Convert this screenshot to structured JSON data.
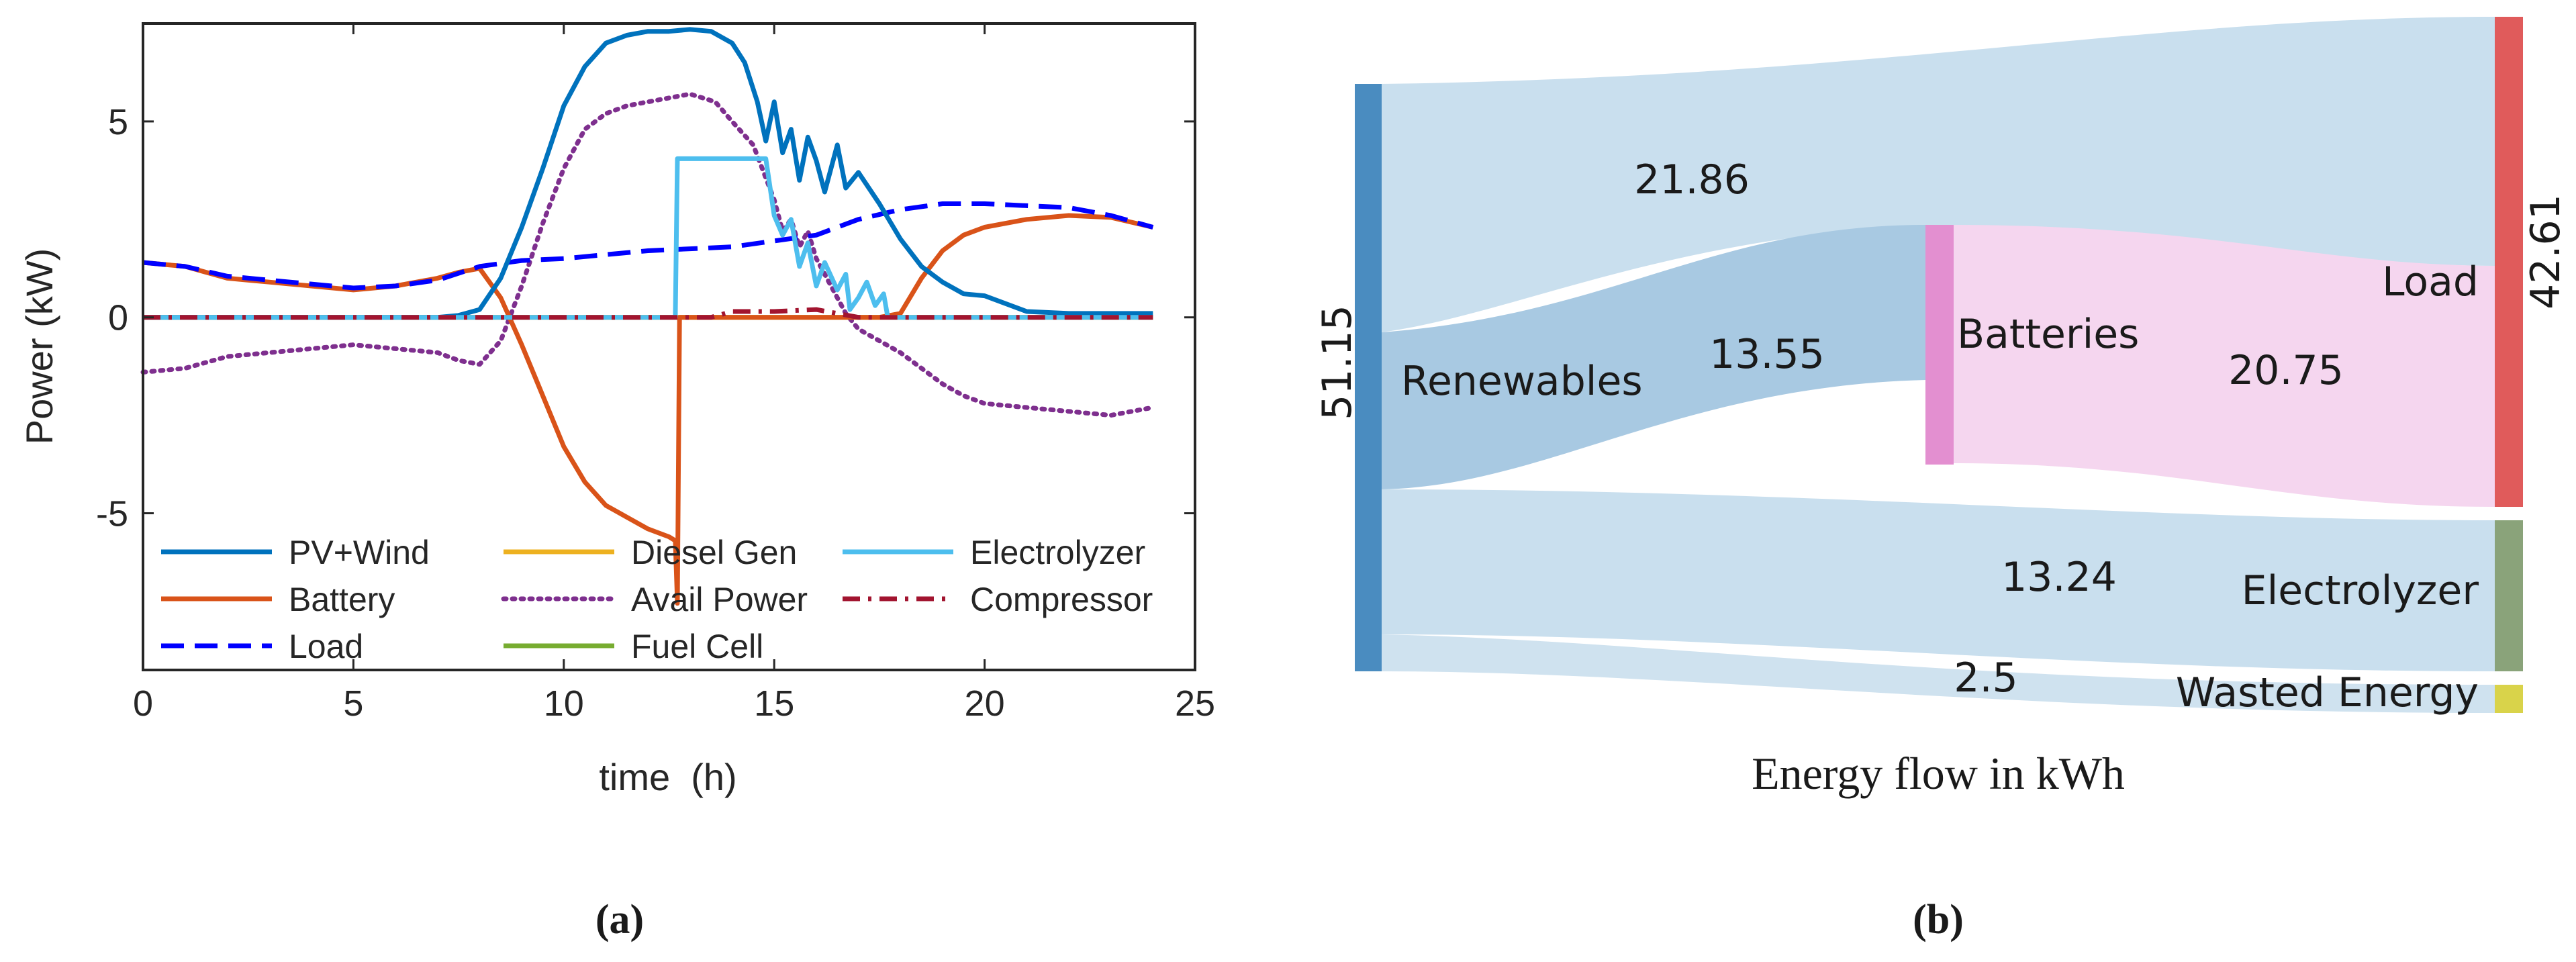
{
  "panel_a_label": "(a)",
  "panel_b_label": "(b)",
  "colors": {
    "pv_wind": "#0072BD",
    "battery": "#D95319",
    "load": "#0000FF",
    "diesel": "#EDB120",
    "avail": "#7E2F8E",
    "fuelcell": "#77AC30",
    "electrolyzer": "#4DBEEE",
    "compressor": "#A2142F",
    "sankey_renewables": "#4a8cc0",
    "sankey_batteries": "#e38fd0",
    "sankey_load": "#e05b5b",
    "sankey_electrolyzer": "#8aa37a",
    "sankey_wasted": "#d9d34a",
    "link_blue": "#c9dfee",
    "link_pink": "#f5d6ef"
  },
  "chart_data": [
    {
      "type": "line",
      "title": "",
      "xlabel": "time  (h)",
      "ylabel": "Power (kW)",
      "xlim": [
        0,
        25
      ],
      "ylim": [
        -9,
        7.5
      ],
      "xticks": [
        0,
        5,
        10,
        15,
        20,
        25
      ],
      "yticks": [
        5,
        0,
        -5
      ],
      "grid": false,
      "legend_position": "bottom-left inside, 3 columns",
      "series": [
        {
          "name": "PV+Wind",
          "key": "pv_wind",
          "style": "solid",
          "x": [
            0,
            7,
            7.5,
            8,
            8.5,
            9,
            9.5,
            10,
            10.5,
            11,
            11.5,
            12,
            12.5,
            13,
            13.5,
            14,
            14.3,
            14.6,
            14.8,
            15,
            15.2,
            15.4,
            15.6,
            15.8,
            16,
            16.2,
            16.5,
            16.7,
            17,
            17.5,
            18,
            18.5,
            19,
            19.5,
            20,
            21,
            22,
            23,
            24
          ],
          "y": [
            0,
            0,
            0.05,
            0.2,
            1,
            2.3,
            3.8,
            5.4,
            6.4,
            7,
            7.2,
            7.3,
            7.3,
            7.35,
            7.3,
            7,
            6.5,
            5.5,
            4.5,
            5.5,
            4.2,
            4.8,
            3.5,
            4.6,
            4,
            3.2,
            4.4,
            3.3,
            3.7,
            2.9,
            2,
            1.3,
            0.9,
            0.6,
            0.55,
            0.15,
            0.1,
            0.1,
            0.1
          ]
        },
        {
          "name": "Battery",
          "key": "battery",
          "style": "solid",
          "x": [
            0,
            1,
            2,
            3,
            4,
            5,
            6,
            7,
            7.5,
            8,
            8.5,
            9,
            9.5,
            10,
            10.5,
            11,
            11.5,
            12,
            12.5,
            12.65,
            12.7,
            12.75,
            12.8,
            13,
            14,
            15,
            16,
            16.5,
            17,
            17.5,
            18,
            18.5,
            19,
            19.5,
            20,
            21,
            22,
            23,
            24
          ],
          "y": [
            1.4,
            1.3,
            1,
            0.9,
            0.8,
            0.7,
            0.8,
            1,
            1.15,
            1.25,
            0.5,
            -0.7,
            -2,
            -3.3,
            -4.2,
            -4.8,
            -5.1,
            -5.4,
            -5.6,
            -5.7,
            -7.3,
            0,
            0,
            0,
            0,
            0,
            0,
            0,
            0,
            0,
            0.1,
            1,
            1.7,
            2.1,
            2.3,
            2.5,
            2.6,
            2.55,
            2.3
          ]
        },
        {
          "name": "Load",
          "key": "load",
          "style": "dashed",
          "x": [
            0,
            1,
            2,
            3,
            4,
            5,
            6,
            7,
            8,
            9,
            10,
            11,
            12,
            13,
            14,
            15,
            16,
            17,
            18,
            19,
            20,
            21,
            22,
            23,
            24
          ],
          "y": [
            1.4,
            1.3,
            1.05,
            0.95,
            0.85,
            0.75,
            0.8,
            0.95,
            1.3,
            1.45,
            1.5,
            1.6,
            1.7,
            1.75,
            1.8,
            1.95,
            2.1,
            2.5,
            2.75,
            2.9,
            2.9,
            2.85,
            2.8,
            2.6,
            2.3
          ]
        },
        {
          "name": "Diesel Gen",
          "key": "diesel",
          "style": "solid",
          "x": [
            0,
            24
          ],
          "y": [
            0,
            0
          ]
        },
        {
          "name": "Avail Power",
          "key": "avail",
          "style": "dotted",
          "x": [
            0,
            1,
            2,
            3,
            4,
            5,
            6,
            7,
            7.5,
            8,
            8.5,
            9,
            9.5,
            10,
            10.5,
            11,
            11.5,
            12,
            12.5,
            13,
            13.3,
            13.6,
            14,
            14.5,
            15,
            15.2,
            15.4,
            15.6,
            15.8,
            16,
            16.3,
            16.7,
            17,
            17.5,
            18,
            18.5,
            19,
            19.5,
            20,
            21,
            22,
            23,
            24
          ],
          "y": [
            -1.4,
            -1.3,
            -1,
            -0.9,
            -0.8,
            -0.7,
            -0.8,
            -0.9,
            -1.1,
            -1.2,
            -0.6,
            0.8,
            2.4,
            3.8,
            4.8,
            5.2,
            5.4,
            5.5,
            5.6,
            5.7,
            5.6,
            5.5,
            5,
            4.4,
            3,
            2.2,
            2.5,
            1.8,
            2.2,
            1.5,
            0.9,
            0.1,
            -0.3,
            -0.6,
            -0.9,
            -1.3,
            -1.7,
            -2,
            -2.2,
            -2.3,
            -2.4,
            -2.5,
            -2.3
          ]
        },
        {
          "name": "Fuel Cell",
          "key": "fuelcell",
          "style": "solid",
          "x": [
            0,
            24
          ],
          "y": [
            0,
            0
          ]
        },
        {
          "name": "Electrolyzer",
          "key": "electrolyzer",
          "style": "solid",
          "x": [
            0,
            12.6,
            12.65,
            12.7,
            12.8,
            14.8,
            15,
            15.2,
            15.4,
            15.6,
            15.8,
            16,
            16.2,
            16.5,
            16.7,
            16.8,
            17,
            17.2,
            17.4,
            17.6,
            17.7,
            24
          ],
          "y": [
            0,
            0,
            0,
            4.05,
            4.05,
            4.05,
            2.6,
            2.1,
            2.5,
            1.3,
            1.9,
            0.8,
            1.4,
            0.7,
            1.1,
            0.2,
            0.5,
            0.9,
            0.3,
            0.6,
            0,
            0
          ]
        },
        {
          "name": "Compressor",
          "key": "compressor",
          "style": "dashdot",
          "x": [
            0,
            13.5,
            14,
            15,
            16,
            16.5,
            17,
            24
          ],
          "y": [
            0,
            0,
            0.15,
            0.15,
            0.2,
            0.1,
            0,
            0
          ]
        }
      ]
    },
    {
      "type": "sankey",
      "title": "Energy flow in kWh",
      "units": "kWh",
      "nodes": [
        {
          "name": "Renewables",
          "value": 51.15,
          "value_label": "51.15"
        },
        {
          "name": "Batteries",
          "value": 13.55
        },
        {
          "name": "Load",
          "value": 42.61,
          "value_label": "42.61"
        },
        {
          "name": "Electrolyzer",
          "value": 13.24
        },
        {
          "name": "Wasted Energy",
          "value": 2.5
        }
      ],
      "links": [
        {
          "source": "Renewables",
          "target": "Load",
          "value": 21.86,
          "label": "21.86"
        },
        {
          "source": "Renewables",
          "target": "Batteries",
          "value": 13.55,
          "label": "13.55"
        },
        {
          "source": "Batteries",
          "target": "Load",
          "value": 20.75,
          "label": "20.75"
        },
        {
          "source": "Renewables",
          "target": "Electrolyzer",
          "value": 13.24,
          "label": "13.24"
        },
        {
          "source": "Renewables",
          "target": "Wasted Energy",
          "value": 2.5,
          "label": "2.5"
        }
      ]
    }
  ]
}
